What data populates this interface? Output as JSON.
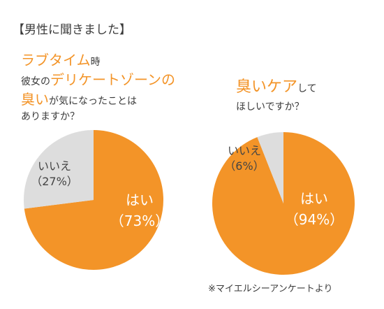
{
  "header": "【男性に聞きました】",
  "chart1": {
    "question": {
      "line1_accent": "ラブタイム",
      "line1_rest": "時",
      "line2_pre": "彼女の",
      "line2_accent": "デリケートゾーンの",
      "line3_accent": "臭い",
      "line3_rest": "が気になったことは",
      "line4": "ありますか？"
    }
  },
  "chart2": {
    "question": {
      "line1_accent": "臭いケア",
      "line1_rest": "して",
      "line2": "ほしいですか？"
    }
  },
  "chart_data": [
    {
      "type": "pie",
      "slices": [
        {
          "label": "はい",
          "pct_text": "（73%）",
          "value": 73,
          "color": "#f39428"
        },
        {
          "label": "いいえ",
          "pct_text": "（27%）",
          "value": 27,
          "color": "#dddddd"
        }
      ]
    },
    {
      "type": "pie",
      "slices": [
        {
          "label": "はい",
          "pct_text": "（94%）",
          "value": 94,
          "color": "#f39428"
        },
        {
          "label": "いいえ",
          "pct_text": "（6%）",
          "value": 6,
          "color": "#dddddd"
        }
      ]
    }
  ],
  "footnote": "※マイエルシーアンケートより"
}
